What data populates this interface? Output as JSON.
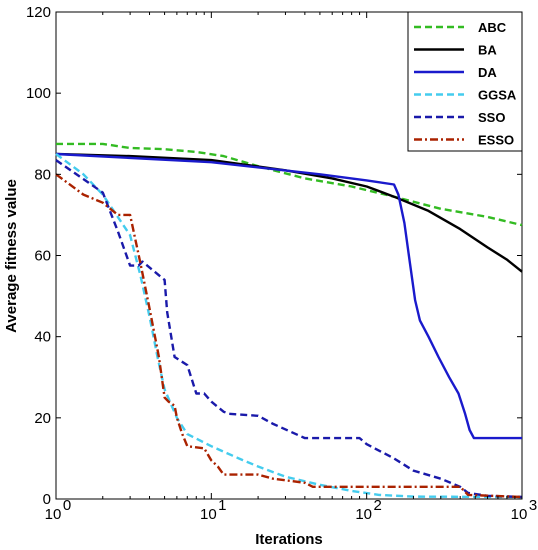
{
  "chart_data": {
    "type": "line",
    "title": "",
    "xlabel": "Iterations",
    "ylabel": "Average fitness value",
    "xscale": "log",
    "xlim": [
      1,
      1000
    ],
    "ylim": [
      0,
      120
    ],
    "x_ticks": [
      {
        "base": "10",
        "exp": "0",
        "value": 1
      },
      {
        "base": "10",
        "exp": "1",
        "value": 10
      },
      {
        "base": "10",
        "exp": "2",
        "value": 100
      },
      {
        "base": "10",
        "exp": "3",
        "value": 1000
      }
    ],
    "y_ticks": [
      "0",
      "20",
      "40",
      "60",
      "80",
      "100",
      "120"
    ],
    "grid": false,
    "legend_position": "top-right",
    "series": [
      {
        "name": "ABC",
        "color": "#33bb22",
        "style": "dashed",
        "points": [
          [
            1,
            87.5
          ],
          [
            2,
            87.5
          ],
          [
            3,
            86.5
          ],
          [
            5,
            86.2
          ],
          [
            8,
            85.5
          ],
          [
            12,
            84.5
          ],
          [
            20,
            82
          ],
          [
            40,
            79
          ],
          [
            80,
            77
          ],
          [
            150,
            74.5
          ],
          [
            300,
            71.5
          ],
          [
            600,
            69.5
          ],
          [
            1000,
            67.5
          ]
        ]
      },
      {
        "name": "BA",
        "color": "#000000",
        "style": "solid",
        "points": [
          [
            1,
            85
          ],
          [
            3,
            84.5
          ],
          [
            10,
            83.5
          ],
          [
            30,
            81
          ],
          [
            60,
            79
          ],
          [
            100,
            77
          ],
          [
            150,
            74.5
          ],
          [
            250,
            71
          ],
          [
            400,
            66.5
          ],
          [
            600,
            62
          ],
          [
            800,
            59
          ],
          [
            1000,
            56
          ]
        ]
      },
      {
        "name": "DA",
        "color": "#1a1acc",
        "style": "solid",
        "points": [
          [
            1,
            85
          ],
          [
            10,
            83
          ],
          [
            50,
            80
          ],
          [
            100,
            78.5
          ],
          [
            150,
            77.5
          ],
          [
            160,
            75
          ],
          [
            175,
            68
          ],
          [
            190,
            58
          ],
          [
            205,
            49
          ],
          [
            220,
            44
          ],
          [
            250,
            40
          ],
          [
            290,
            35
          ],
          [
            340,
            30
          ],
          [
            390,
            26
          ],
          [
            430,
            21
          ],
          [
            460,
            17
          ],
          [
            490,
            15
          ],
          [
            1000,
            15
          ]
        ]
      },
      {
        "name": "GGSA",
        "color": "#44ccee",
        "style": "dashed",
        "points": [
          [
            1,
            85
          ],
          [
            1.5,
            80
          ],
          [
            2,
            75
          ],
          [
            3,
            65
          ],
          [
            3.5,
            55
          ],
          [
            4,
            45
          ],
          [
            4.5,
            35
          ],
          [
            5,
            27
          ],
          [
            6,
            20
          ],
          [
            7,
            16
          ],
          [
            10,
            13
          ],
          [
            15,
            10
          ],
          [
            20,
            8
          ],
          [
            30,
            5.5
          ],
          [
            50,
            3.5
          ],
          [
            80,
            2
          ],
          [
            120,
            1
          ],
          [
            200,
            0.6
          ],
          [
            1000,
            0.5
          ]
        ]
      },
      {
        "name": "SSO",
        "color": "#1a1aaa",
        "style": "dashed",
        "points": [
          [
            1,
            83.5
          ],
          [
            2,
            75.5
          ],
          [
            2.5,
            66
          ],
          [
            3,
            57.5
          ],
          [
            3.4,
            57.5
          ],
          [
            3.6,
            58.5
          ],
          [
            5,
            54
          ],
          [
            5.2,
            46
          ],
          [
            5.8,
            35
          ],
          [
            7,
            33
          ],
          [
            8,
            26
          ],
          [
            9,
            26
          ],
          [
            10,
            24
          ],
          [
            12,
            21.5
          ],
          [
            13,
            21
          ],
          [
            20,
            20.5
          ],
          [
            25,
            18.5
          ],
          [
            40,
            15
          ],
          [
            90,
            15
          ],
          [
            100,
            13.5
          ],
          [
            150,
            10
          ],
          [
            200,
            7
          ],
          [
            300,
            5
          ],
          [
            400,
            3
          ],
          [
            450,
            1.5
          ],
          [
            600,
            0.8
          ],
          [
            1000,
            0.5
          ]
        ]
      },
      {
        "name": "ESSO",
        "color": "#aa2200",
        "style": "dashdot",
        "points": [
          [
            1,
            80
          ],
          [
            1.5,
            75
          ],
          [
            2,
            73
          ],
          [
            2.5,
            70
          ],
          [
            3,
            70
          ],
          [
            3.5,
            58
          ],
          [
            4,
            47
          ],
          [
            4.6,
            35
          ],
          [
            5,
            25
          ],
          [
            5.3,
            24
          ],
          [
            5.8,
            23
          ],
          [
            6,
            20
          ],
          [
            6.5,
            16
          ],
          [
            7,
            13
          ],
          [
            9,
            12.5
          ],
          [
            10,
            9.5
          ],
          [
            11,
            8
          ],
          [
            12,
            6
          ],
          [
            20,
            6
          ],
          [
            25,
            5
          ],
          [
            40,
            4
          ],
          [
            45,
            3
          ],
          [
            400,
            3
          ],
          [
            450,
            1
          ],
          [
            1000,
            0.5
          ]
        ]
      }
    ]
  }
}
